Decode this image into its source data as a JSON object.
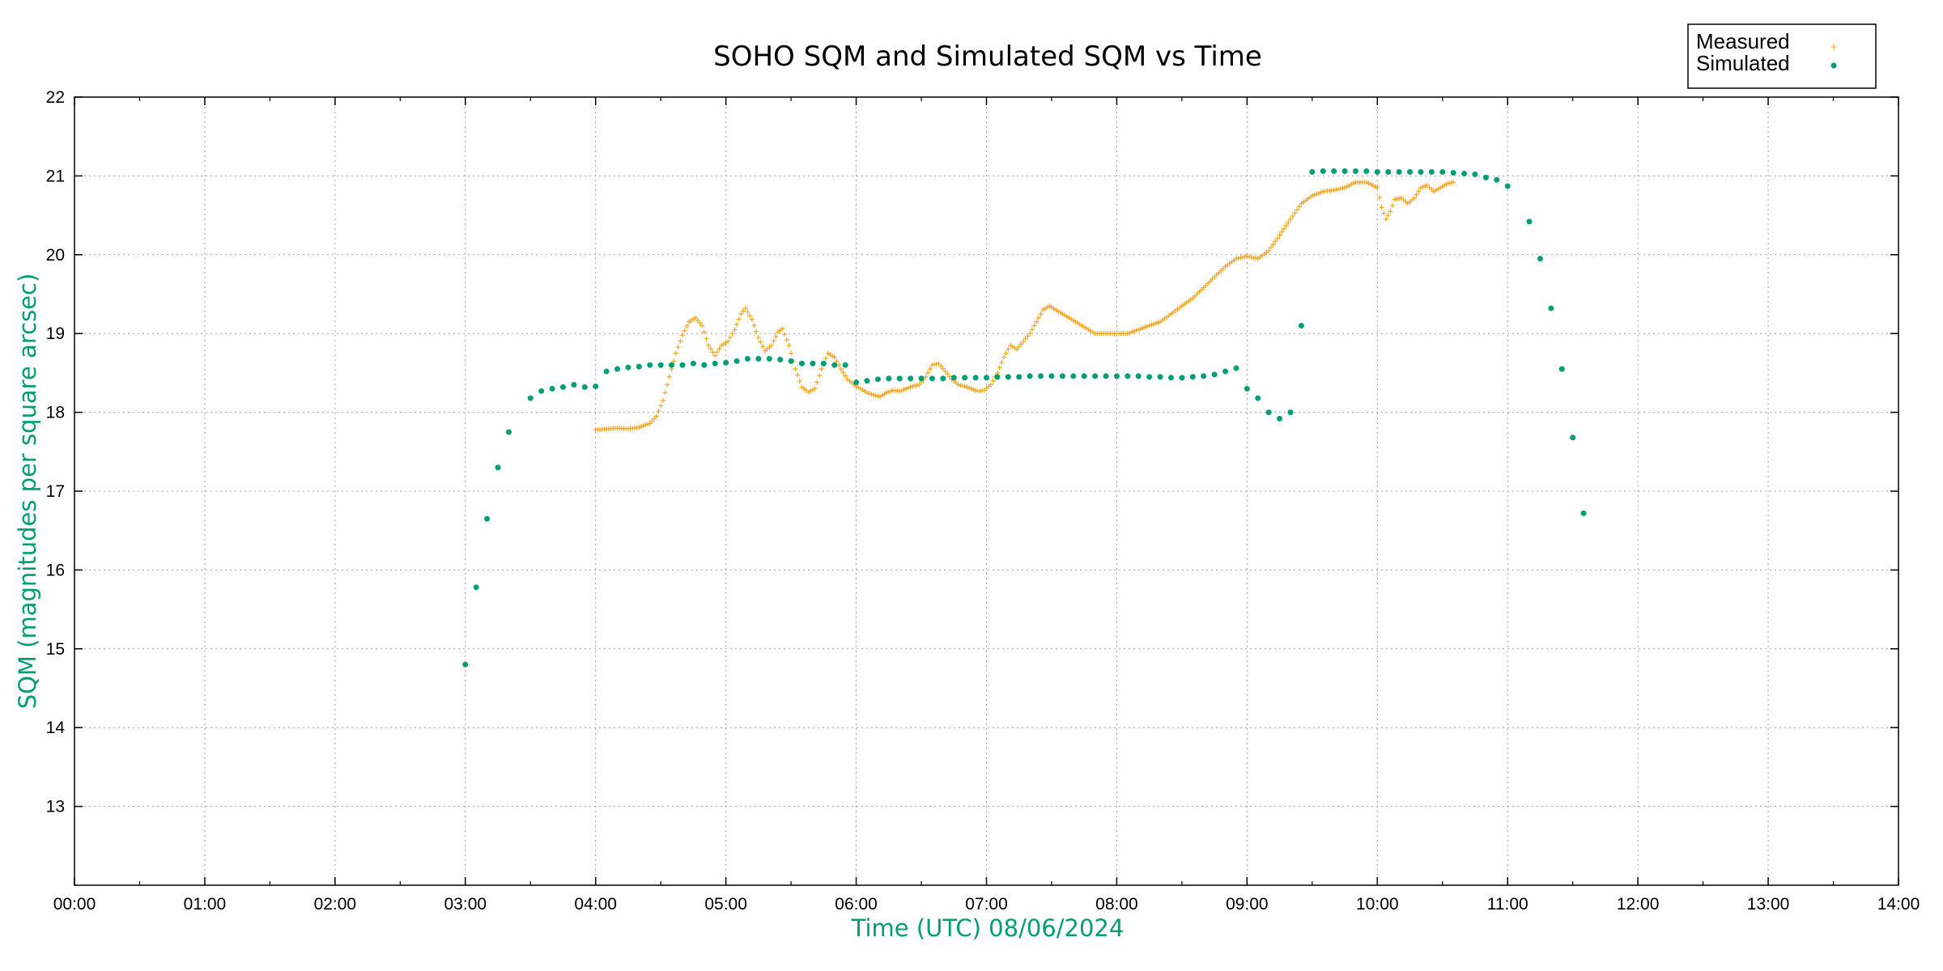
{
  "chart_data": {
    "type": "scatter",
    "title": "SOHO SQM and Simulated SQM vs Time",
    "xlabel": "Time (UTC)   08/06/2024",
    "ylabel": "SQM (magnitudes per square arcsec)",
    "xlim": [
      "00:00",
      "14:00"
    ],
    "ylim": [
      12,
      22
    ],
    "x_ticks": [
      "00:00",
      "01:00",
      "02:00",
      "03:00",
      "04:00",
      "05:00",
      "06:00",
      "07:00",
      "08:00",
      "09:00",
      "10:00",
      "11:00",
      "12:00",
      "13:00",
      "14:00"
    ],
    "y_ticks": [
      13,
      14,
      15,
      16,
      17,
      18,
      19,
      20,
      21,
      22
    ],
    "grid": true,
    "legend_position": "top-right, outside plot",
    "colors": {
      "measured": "#f5a623",
      "simulated": "#009e73",
      "axis_label": "#009e73"
    },
    "series": [
      {
        "name": "Measured",
        "marker": "+",
        "color": "#f5a623",
        "points": [
          [
            "04:00",
            17.78
          ],
          [
            "04:05",
            17.79
          ],
          [
            "04:10",
            17.8
          ],
          [
            "04:15",
            17.79
          ],
          [
            "04:20",
            17.81
          ],
          [
            "04:25",
            17.86
          ],
          [
            "04:28",
            17.95
          ],
          [
            "04:31",
            18.15
          ],
          [
            "04:34",
            18.45
          ],
          [
            "04:37",
            18.75
          ],
          [
            "04:40",
            18.98
          ],
          [
            "04:43",
            19.15
          ],
          [
            "04:46",
            19.2
          ],
          [
            "04:49",
            19.1
          ],
          [
            "04:52",
            18.85
          ],
          [
            "04:55",
            18.72
          ],
          [
            "04:58",
            18.85
          ],
          [
            "05:01",
            18.9
          ],
          [
            "05:04",
            19.05
          ],
          [
            "05:07",
            19.25
          ],
          [
            "05:09",
            19.32
          ],
          [
            "05:12",
            19.18
          ],
          [
            "05:15",
            18.95
          ],
          [
            "05:18",
            18.78
          ],
          [
            "05:21",
            18.85
          ],
          [
            "05:24",
            19.02
          ],
          [
            "05:26",
            19.06
          ],
          [
            "05:29",
            18.85
          ],
          [
            "05:32",
            18.55
          ],
          [
            "05:35",
            18.32
          ],
          [
            "05:38",
            18.26
          ],
          [
            "05:41",
            18.3
          ],
          [
            "05:44",
            18.55
          ],
          [
            "05:47",
            18.75
          ],
          [
            "05:50",
            18.7
          ],
          [
            "05:53",
            18.55
          ],
          [
            "05:56",
            18.42
          ],
          [
            "05:59",
            18.35
          ],
          [
            "06:02",
            18.3
          ],
          [
            "06:05",
            18.25
          ],
          [
            "06:08",
            18.22
          ],
          [
            "06:11",
            18.2
          ],
          [
            "06:14",
            18.25
          ],
          [
            "06:17",
            18.28
          ],
          [
            "06:20",
            18.27
          ],
          [
            "06:23",
            18.3
          ],
          [
            "06:26",
            18.33
          ],
          [
            "06:29",
            18.35
          ],
          [
            "06:32",
            18.45
          ],
          [
            "06:35",
            18.6
          ],
          [
            "06:38",
            18.62
          ],
          [
            "06:41",
            18.52
          ],
          [
            "06:44",
            18.42
          ],
          [
            "06:47",
            18.35
          ],
          [
            "06:50",
            18.33
          ],
          [
            "06:53",
            18.3
          ],
          [
            "06:56",
            18.27
          ],
          [
            "06:59",
            18.28
          ],
          [
            "07:02",
            18.35
          ],
          [
            "07:05",
            18.5
          ],
          [
            "07:08",
            18.7
          ],
          [
            "07:11",
            18.85
          ],
          [
            "07:14",
            18.8
          ],
          [
            "07:17",
            18.9
          ],
          [
            "07:20",
            19.0
          ],
          [
            "07:23",
            19.15
          ],
          [
            "07:26",
            19.3
          ],
          [
            "07:29",
            19.35
          ],
          [
            "07:32",
            19.3
          ],
          [
            "07:35",
            19.25
          ],
          [
            "07:38",
            19.2
          ],
          [
            "07:41",
            19.15
          ],
          [
            "07:44",
            19.1
          ],
          [
            "07:47",
            19.05
          ],
          [
            "07:50",
            19.0
          ],
          [
            "07:55",
            19.0
          ],
          [
            "08:00",
            19.0
          ],
          [
            "08:05",
            19.0
          ],
          [
            "08:10",
            19.05
          ],
          [
            "08:15",
            19.1
          ],
          [
            "08:20",
            19.15
          ],
          [
            "08:25",
            19.25
          ],
          [
            "08:30",
            19.35
          ],
          [
            "08:35",
            19.45
          ],
          [
            "08:40",
            19.58
          ],
          [
            "08:45",
            19.72
          ],
          [
            "08:50",
            19.85
          ],
          [
            "08:55",
            19.95
          ],
          [
            "09:00",
            19.98
          ],
          [
            "09:05",
            19.95
          ],
          [
            "09:10",
            20.05
          ],
          [
            "09:15",
            20.25
          ],
          [
            "09:20",
            20.45
          ],
          [
            "09:25",
            20.65
          ],
          [
            "09:30",
            20.75
          ],
          [
            "09:35",
            20.8
          ],
          [
            "09:40",
            20.82
          ],
          [
            "09:45",
            20.85
          ],
          [
            "09:50",
            20.92
          ],
          [
            "09:55",
            20.92
          ],
          [
            "10:00",
            20.85
          ],
          [
            "10:02",
            20.6
          ],
          [
            "10:04",
            20.45
          ],
          [
            "10:06",
            20.55
          ],
          [
            "10:08",
            20.7
          ],
          [
            "10:11",
            20.72
          ],
          [
            "10:14",
            20.65
          ],
          [
            "10:17",
            20.72
          ],
          [
            "10:20",
            20.85
          ],
          [
            "10:23",
            20.88
          ],
          [
            "10:26",
            20.8
          ],
          [
            "10:29",
            20.85
          ],
          [
            "10:32",
            20.9
          ],
          [
            "10:35",
            20.92
          ]
        ]
      },
      {
        "name": "Simulated",
        "marker": "dot",
        "color": "#009e73",
        "points": [
          [
            "03:00",
            14.8
          ],
          [
            "03:05",
            15.78
          ],
          [
            "03:10",
            16.65
          ],
          [
            "03:15",
            17.3
          ],
          [
            "03:20",
            17.75
          ],
          [
            "03:30",
            18.18
          ],
          [
            "03:35",
            18.27
          ],
          [
            "03:40",
            18.3
          ],
          [
            "03:45",
            18.32
          ],
          [
            "03:50",
            18.35
          ],
          [
            "03:55",
            18.32
          ],
          [
            "04:00",
            18.33
          ],
          [
            "04:05",
            18.52
          ],
          [
            "04:10",
            18.55
          ],
          [
            "04:15",
            18.57
          ],
          [
            "04:20",
            18.58
          ],
          [
            "04:25",
            18.6
          ],
          [
            "04:30",
            18.6
          ],
          [
            "04:35",
            18.6
          ],
          [
            "04:40",
            18.6
          ],
          [
            "04:45",
            18.62
          ],
          [
            "04:50",
            18.6
          ],
          [
            "04:55",
            18.62
          ],
          [
            "05:00",
            18.63
          ],
          [
            "05:05",
            18.65
          ],
          [
            "05:10",
            18.68
          ],
          [
            "05:15",
            18.68
          ],
          [
            "05:20",
            18.68
          ],
          [
            "05:25",
            18.67
          ],
          [
            "05:30",
            18.65
          ],
          [
            "05:35",
            18.62
          ],
          [
            "05:40",
            18.62
          ],
          [
            "05:45",
            18.62
          ],
          [
            "05:50",
            18.6
          ],
          [
            "05:55",
            18.6
          ],
          [
            "06:00",
            18.38
          ],
          [
            "06:05",
            18.4
          ],
          [
            "06:10",
            18.42
          ],
          [
            "06:15",
            18.43
          ],
          [
            "06:20",
            18.43
          ],
          [
            "06:25",
            18.43
          ],
          [
            "06:30",
            18.43
          ],
          [
            "06:35",
            18.43
          ],
          [
            "06:40",
            18.43
          ],
          [
            "06:45",
            18.44
          ],
          [
            "06:50",
            18.44
          ],
          [
            "06:55",
            18.44
          ],
          [
            "07:00",
            18.44
          ],
          [
            "07:05",
            18.45
          ],
          [
            "07:10",
            18.45
          ],
          [
            "07:15",
            18.45
          ],
          [
            "07:20",
            18.46
          ],
          [
            "07:25",
            18.46
          ],
          [
            "07:30",
            18.46
          ],
          [
            "07:35",
            18.46
          ],
          [
            "07:40",
            18.46
          ],
          [
            "07:45",
            18.46
          ],
          [
            "07:50",
            18.46
          ],
          [
            "07:55",
            18.46
          ],
          [
            "08:00",
            18.46
          ],
          [
            "08:05",
            18.46
          ],
          [
            "08:10",
            18.46
          ],
          [
            "08:15",
            18.45
          ],
          [
            "08:20",
            18.45
          ],
          [
            "08:25",
            18.44
          ],
          [
            "08:30",
            18.44
          ],
          [
            "08:35",
            18.45
          ],
          [
            "08:40",
            18.46
          ],
          [
            "08:45",
            18.48
          ],
          [
            "08:50",
            18.52
          ],
          [
            "08:55",
            18.56
          ],
          [
            "09:00",
            18.3
          ],
          [
            "09:05",
            18.18
          ],
          [
            "09:10",
            18.0
          ],
          [
            "09:15",
            17.92
          ],
          [
            "09:20",
            18.0
          ],
          [
            "09:25",
            19.1
          ],
          [
            "09:30",
            21.05
          ],
          [
            "09:35",
            21.06
          ],
          [
            "09:40",
            21.06
          ],
          [
            "09:45",
            21.06
          ],
          [
            "09:50",
            21.06
          ],
          [
            "09:55",
            21.06
          ],
          [
            "10:00",
            21.05
          ],
          [
            "10:05",
            21.05
          ],
          [
            "10:10",
            21.05
          ],
          [
            "10:15",
            21.05
          ],
          [
            "10:20",
            21.05
          ],
          [
            "10:25",
            21.05
          ],
          [
            "10:30",
            21.05
          ],
          [
            "10:35",
            21.04
          ],
          [
            "10:40",
            21.03
          ],
          [
            "10:45",
            21.02
          ],
          [
            "10:50",
            20.98
          ],
          [
            "10:55",
            20.95
          ],
          [
            "11:00",
            20.87
          ],
          [
            "11:10",
            20.42
          ],
          [
            "11:15",
            19.95
          ],
          [
            "11:20",
            19.32
          ],
          [
            "11:25",
            18.55
          ],
          [
            "11:30",
            17.68
          ],
          [
            "11:35",
            16.72
          ]
        ]
      }
    ]
  }
}
